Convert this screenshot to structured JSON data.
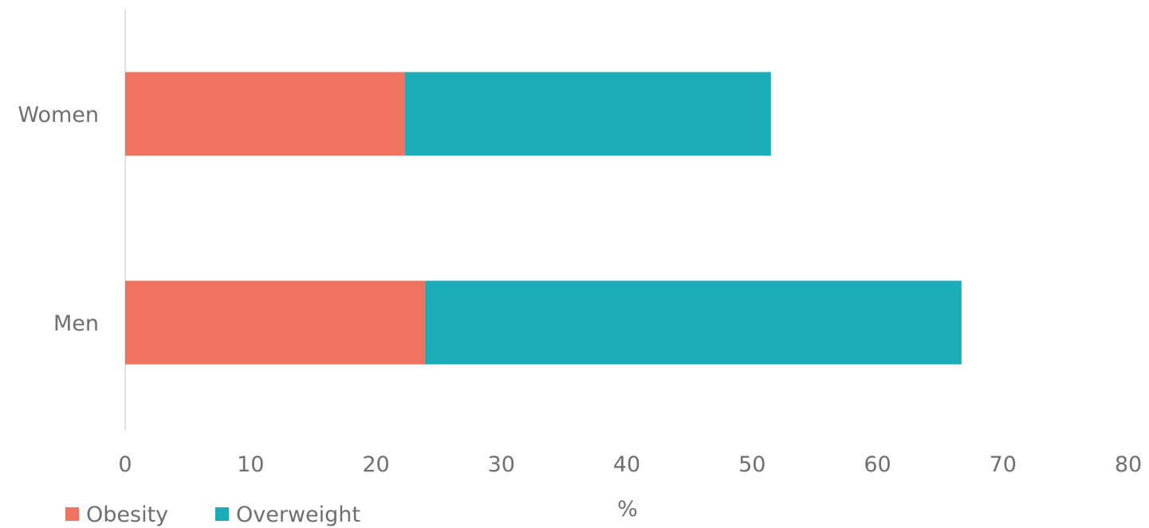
{
  "chart_data": {
    "type": "bar",
    "orientation": "horizontal",
    "stacked": true,
    "categories": [
      "Women",
      "Men"
    ],
    "series": [
      {
        "name": "Obesity",
        "values": [
          22.3,
          23.9
        ],
        "color": "#f07362"
      },
      {
        "name": "Overweight",
        "values": [
          29.2,
          42.8
        ],
        "color": "#1aadb8"
      }
    ],
    "xlabel": "%",
    "ylabel": "",
    "xlim": [
      0,
      80
    ],
    "xticks": [
      0,
      10,
      20,
      30,
      40,
      50,
      60,
      70,
      80
    ],
    "grid": false,
    "legend": "bottom-left"
  }
}
